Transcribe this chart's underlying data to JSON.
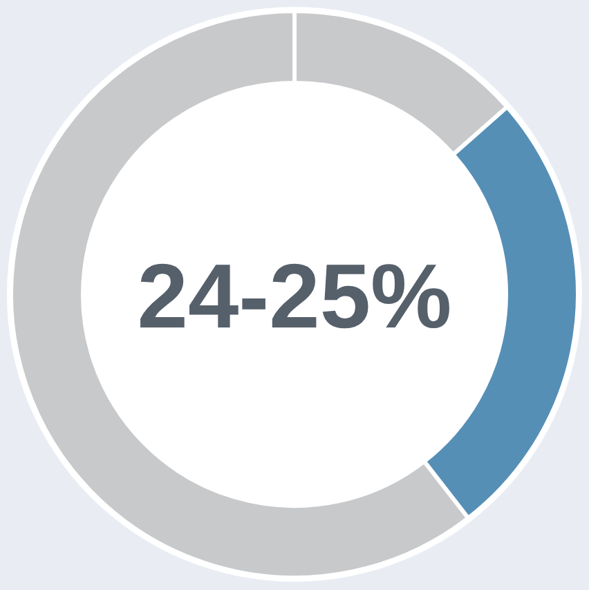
{
  "chart_data": {
    "type": "donut",
    "categories": [
      null,
      null,
      null
    ],
    "values": [
      13.5,
      26,
      60.5
    ],
    "colors": [
      "#c8c9cb",
      "#568fb6",
      "#c8c9cb"
    ],
    "annotations": [
      "24-25%"
    ]
  }
}
